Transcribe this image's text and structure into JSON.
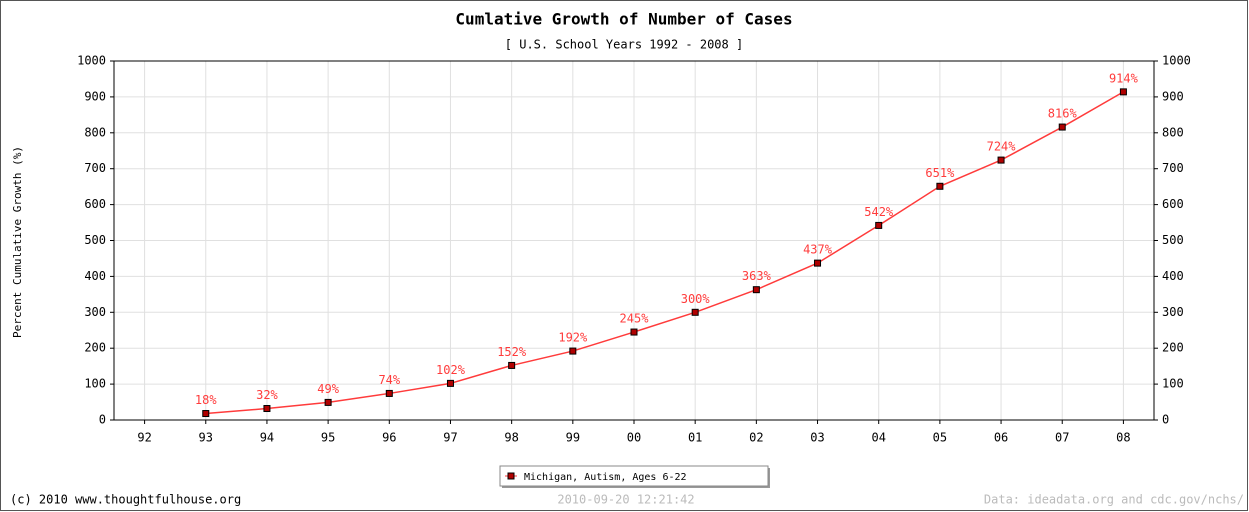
{
  "chart_data": {
    "type": "line",
    "title": "Cumlative Growth of Number of Cases",
    "subtitle": "[ U.S. School Years 1992 - 2008 ]",
    "ylabel": "Percent Cumulative Growth (%)",
    "categories": [
      "92",
      "93",
      "94",
      "95",
      "96",
      "97",
      "98",
      "99",
      "00",
      "01",
      "02",
      "03",
      "04",
      "05",
      "06",
      "07",
      "08"
    ],
    "series": [
      {
        "name": "Michigan, Autism, Ages 6-22",
        "color": "#ff3b3b",
        "marker_color": "#b00000",
        "values": [
          null,
          18,
          32,
          49,
          74,
          102,
          152,
          192,
          245,
          300,
          363,
          437,
          542,
          651,
          724,
          816,
          914
        ],
        "value_labels": [
          null,
          "18%",
          "32%",
          "49%",
          "74%",
          "102%",
          "152%",
          "192%",
          "245%",
          "300%",
          "363%",
          "437%",
          "542%",
          "651%",
          "724%",
          "816%",
          "914%"
        ]
      }
    ],
    "ylim": [
      0,
      1000
    ],
    "yticks": [
      0,
      100,
      200,
      300,
      400,
      500,
      600,
      700,
      800,
      900,
      1000
    ],
    "y2lim": [
      0,
      1000
    ],
    "y2ticks": [
      0,
      100,
      200,
      300,
      400,
      500,
      600,
      700,
      800,
      900,
      1000
    ],
    "grid": true,
    "legend": "bottom",
    "footer_left": "(c) 2010 www.thoughtfulhouse.org",
    "footer_center": "2010-09-20 12:21:42",
    "footer_right": "Data: ideadata.org and cdc.gov/nchs/"
  }
}
